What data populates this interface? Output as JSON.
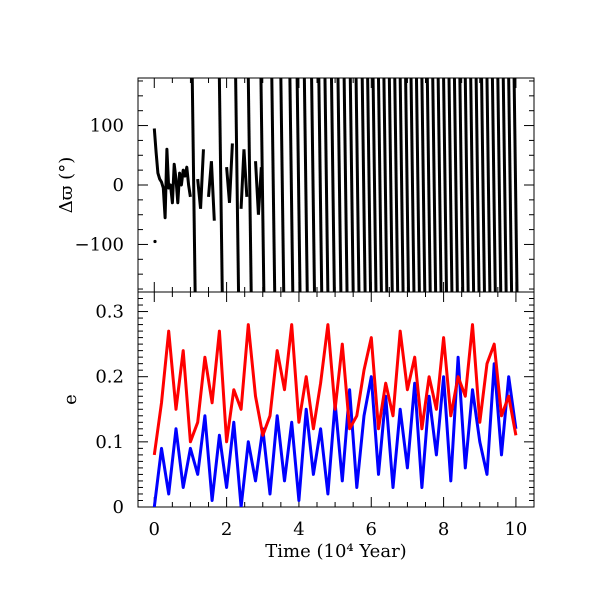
{
  "chart_data": [
    {
      "type": "line",
      "panel": "top",
      "ylabel": "Δϖ (°)",
      "ylim": [
        -180,
        180
      ],
      "yticks": [
        -100,
        0,
        100
      ],
      "ytick_labels": [
        "−100",
        "0",
        "100"
      ],
      "xlim": [
        -0.45,
        10.5
      ],
      "xticks": [
        0,
        2,
        4,
        6,
        8,
        10
      ],
      "grid": false,
      "series": [
        {
          "color": "#000000",
          "description_values": "libration around 0 deg until t≈1, then circulation with shortening period",
          "x": [
            0,
            0.05,
            0.1,
            0.15,
            0.2,
            0.25,
            0.3,
            0.35,
            0.4,
            0.45,
            0.5,
            0.55,
            0.6,
            0.65,
            0.7,
            0.75,
            0.8,
            0.85,
            0.9,
            0.95,
            1.0
          ],
          "y": [
            95,
            55,
            20,
            10,
            5,
            -5,
            -55,
            60,
            -5,
            0,
            -30,
            35,
            10,
            -30,
            20,
            0,
            25,
            15,
            30,
            0,
            -20
          ]
        }
      ],
      "circulation_wrap_times": [
        1.05,
        1.8,
        2.25,
        2.6,
        2.95,
        3.25,
        3.5,
        3.75,
        3.95,
        4.15,
        4.35,
        4.55,
        4.72,
        4.9,
        5.08,
        5.25,
        5.42,
        5.58,
        5.75,
        5.9,
        6.05,
        6.2,
        6.35,
        6.5,
        6.65,
        6.8,
        6.95,
        7.1,
        7.25,
        7.4,
        7.55,
        7.7,
        7.85,
        8.0,
        8.15,
        8.3,
        8.45,
        8.6,
        8.75,
        8.9,
        9.05,
        9.2,
        9.35,
        9.5,
        9.65,
        9.8,
        9.95
      ],
      "circulation_direction": "decreasing"
    },
    {
      "type": "line",
      "panel": "bottom",
      "xlabel": "Time (10⁴ Year)",
      "ylabel": "e",
      "ylim": [
        0,
        0.33
      ],
      "yticks": [
        0,
        0.1,
        0.2,
        0.3
      ],
      "ytick_labels": [
        "0",
        "0.1",
        "0.2",
        "0.3"
      ],
      "xlim": [
        -0.45,
        10.5
      ],
      "xticks": [
        0,
        2,
        4,
        6,
        8,
        10
      ],
      "xtick_labels": [
        "0",
        "2",
        "4",
        "6",
        "8",
        "10"
      ],
      "grid": false,
      "series": [
        {
          "color": "#ff0000",
          "x": [
            0,
            0.2,
            0.4,
            0.6,
            0.8,
            1.0,
            1.2,
            1.4,
            1.6,
            1.8,
            2.0,
            2.2,
            2.4,
            2.6,
            2.8,
            3.0,
            3.2,
            3.4,
            3.6,
            3.8,
            4.0,
            4.2,
            4.4,
            4.6,
            4.8,
            5.0,
            5.2,
            5.4,
            5.6,
            5.8,
            6.0,
            6.2,
            6.4,
            6.6,
            6.8,
            7.0,
            7.2,
            7.4,
            7.6,
            7.8,
            8.0,
            8.2,
            8.4,
            8.6,
            8.8,
            9.0,
            9.2,
            9.4,
            9.6,
            9.8,
            10.0
          ],
          "y": [
            0.08,
            0.16,
            0.27,
            0.15,
            0.24,
            0.1,
            0.13,
            0.23,
            0.16,
            0.27,
            0.1,
            0.18,
            0.15,
            0.28,
            0.17,
            0.11,
            0.14,
            0.24,
            0.18,
            0.28,
            0.13,
            0.2,
            0.12,
            0.19,
            0.28,
            0.15,
            0.25,
            0.12,
            0.14,
            0.21,
            0.26,
            0.12,
            0.19,
            0.14,
            0.27,
            0.18,
            0.23,
            0.12,
            0.2,
            0.15,
            0.26,
            0.14,
            0.2,
            0.17,
            0.28,
            0.13,
            0.22,
            0.25,
            0.14,
            0.17,
            0.11
          ]
        },
        {
          "color": "#0000ff",
          "x": [
            0,
            0.2,
            0.4,
            0.6,
            0.8,
            1.0,
            1.2,
            1.4,
            1.6,
            1.8,
            2.0,
            2.2,
            2.4,
            2.6,
            2.8,
            3.0,
            3.2,
            3.4,
            3.6,
            3.8,
            4.0,
            4.2,
            4.4,
            4.6,
            4.8,
            5.0,
            5.2,
            5.4,
            5.6,
            5.8,
            6.0,
            6.2,
            6.4,
            6.6,
            6.8,
            7.0,
            7.2,
            7.4,
            7.6,
            7.8,
            8.0,
            8.2,
            8.4,
            8.6,
            8.8,
            9.0,
            9.2,
            9.4,
            9.6,
            9.8,
            10.0
          ],
          "y": [
            0.0,
            0.09,
            0.02,
            0.12,
            0.03,
            0.09,
            0.05,
            0.14,
            0.01,
            0.11,
            0.03,
            0.13,
            0.0,
            0.1,
            0.04,
            0.12,
            0.02,
            0.14,
            0.04,
            0.13,
            0.01,
            0.15,
            0.05,
            0.12,
            0.02,
            0.16,
            0.04,
            0.18,
            0.03,
            0.14,
            0.2,
            0.05,
            0.17,
            0.03,
            0.15,
            0.06,
            0.19,
            0.03,
            0.17,
            0.08,
            0.2,
            0.04,
            0.23,
            0.06,
            0.18,
            0.1,
            0.05,
            0.22,
            0.08,
            0.2,
            0.12
          ]
        }
      ]
    }
  ]
}
